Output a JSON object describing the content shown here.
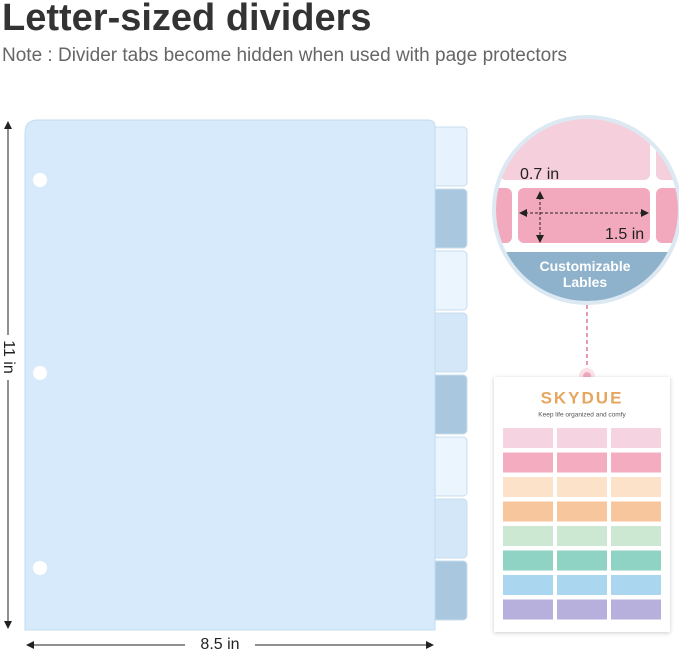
{
  "header": {
    "title": "Letter-sized dividers",
    "note": "Note : Divider tabs become hidden when used with page protectors"
  },
  "dimensions": {
    "height": "11 in",
    "width": "8.5 in"
  },
  "label_detail": {
    "label_height": "0.7 in",
    "label_width": "1.5 in",
    "caption": "Customizable Lables"
  },
  "sticker_sheet": {
    "brand": "SKYDUE",
    "tagline": "Keep life organized and comfy"
  }
}
